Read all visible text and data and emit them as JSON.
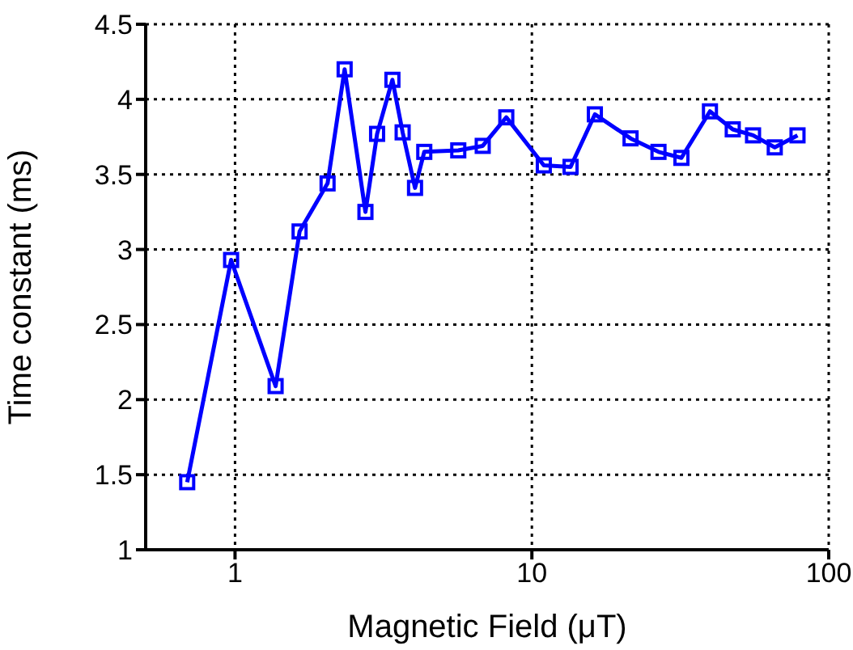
{
  "chart_data": {
    "type": "line",
    "xlabel": "Magnetic Field (μT)",
    "ylabel": "Time constant (ms)",
    "log": "x",
    "xlim": [
      0.5,
      100
    ],
    "xticks": [
      1,
      10,
      100
    ],
    "ylim": [
      1,
      4.5
    ],
    "yticks": [
      1,
      1.5,
      2,
      2.5,
      3,
      3.5,
      4,
      4.5
    ],
    "grid": true,
    "marker": "square",
    "line_style": "solid",
    "x": [
      0.69,
      0.97,
      1.37,
      1.65,
      2.05,
      2.34,
      2.75,
      3.01,
      3.39,
      3.67,
      4.04,
      4.34,
      5.65,
      6.83,
      8.2,
      10.97,
      13.5,
      16.3,
      21.5,
      26.7,
      31.9,
      39.8,
      47.5,
      55.6,
      65.8,
      78.5
    ],
    "series": [
      {
        "color": "#0000ff",
        "values": [
          1.45,
          2.93,
          2.09,
          3.12,
          3.44,
          4.2,
          3.25,
          3.77,
          4.13,
          3.78,
          3.41,
          3.65,
          3.66,
          3.69,
          3.88,
          3.56,
          3.55,
          3.9,
          3.74,
          3.65,
          3.61,
          3.92,
          3.8,
          3.76,
          3.68,
          3.76
        ]
      }
    ]
  }
}
